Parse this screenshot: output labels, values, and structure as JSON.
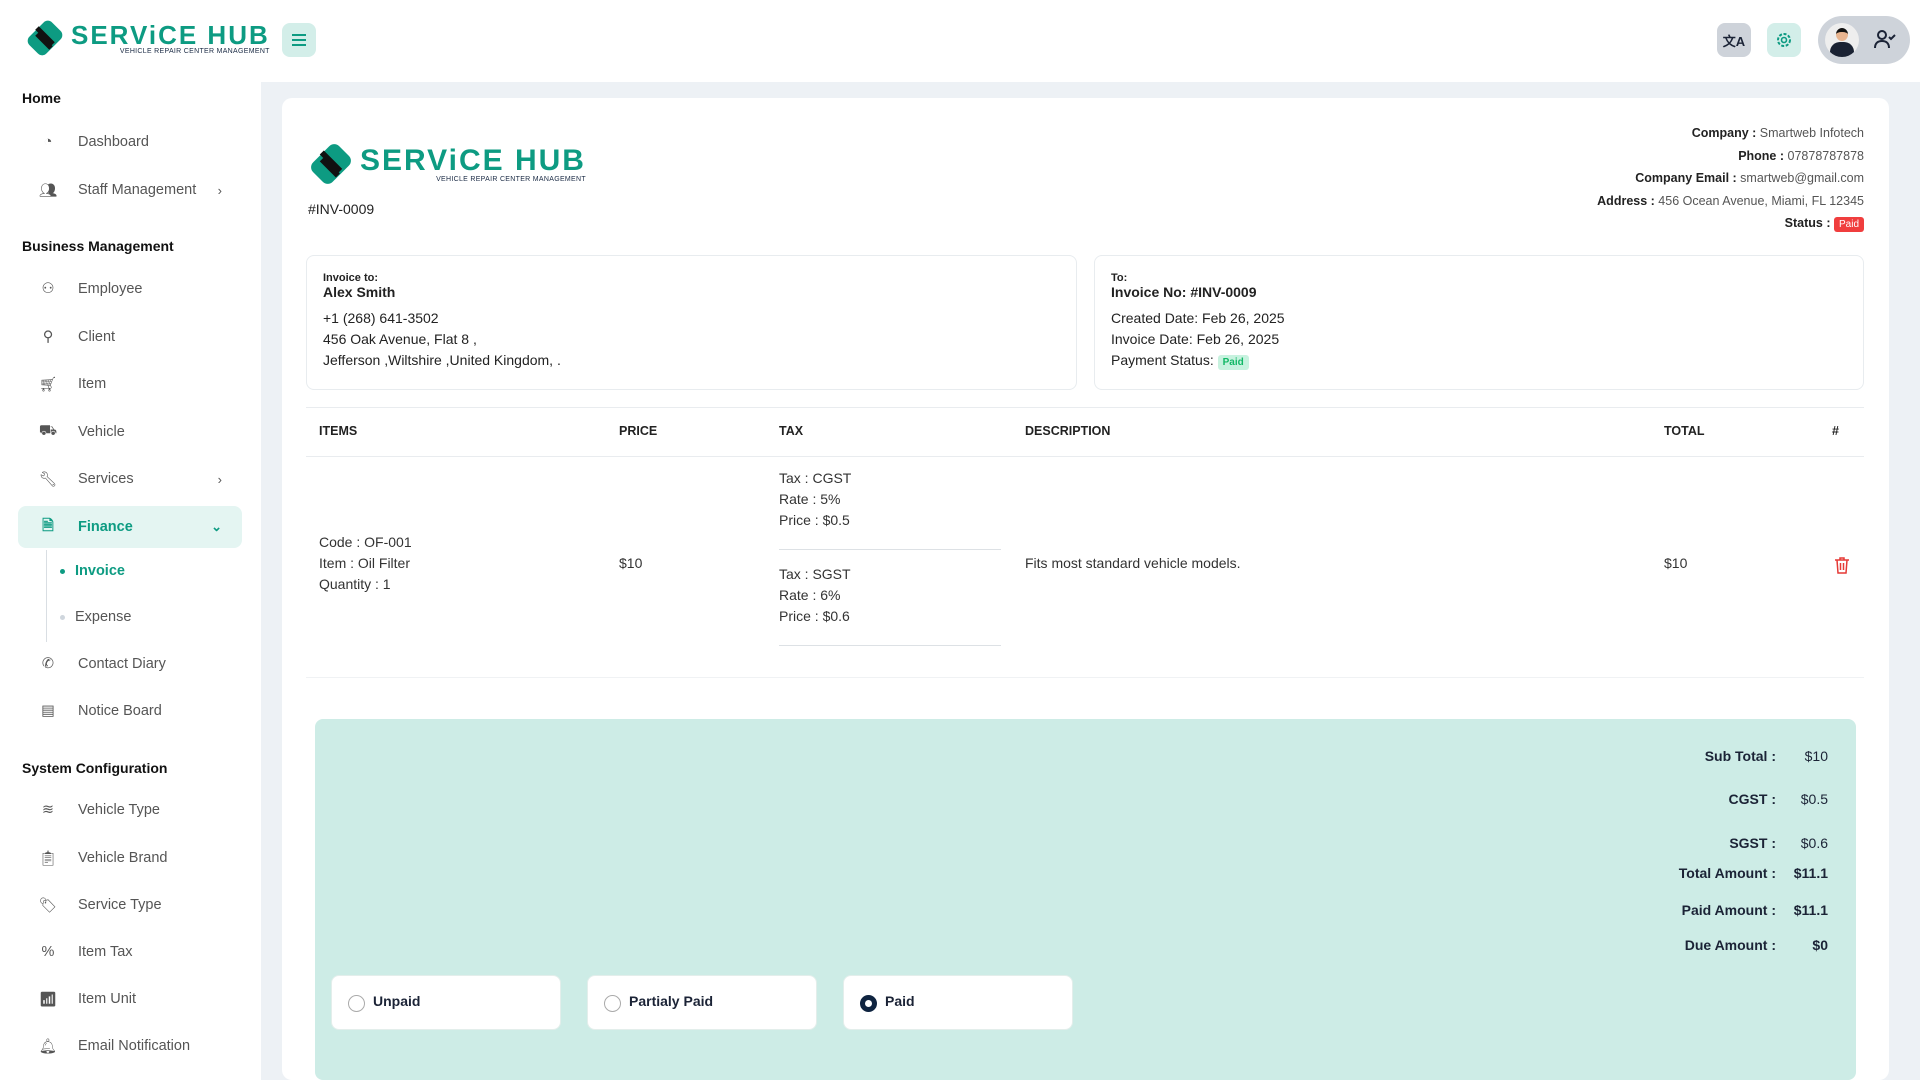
{
  "brand": {
    "name": "SERViCE HUB",
    "tagline": "VEHICLE REPAIR CENTER MANAGEMENT",
    "color": "#0d9b82"
  },
  "header": {
    "menu_icon": "hamburger-icon",
    "translate_icon": "translate-icon",
    "settings_icon": "gear-icon",
    "profile_icon": "user-check-icon"
  },
  "sidebar": {
    "sections": [
      {
        "title": "Home",
        "items": [
          {
            "label": "Dashboard",
            "icon": "dashboard-icon"
          },
          {
            "label": "Staff Management",
            "icon": "users-icon",
            "chevron": true
          }
        ]
      },
      {
        "title": "Business Management",
        "items": [
          {
            "label": "Employee",
            "icon": "user-plus-icon"
          },
          {
            "label": "Client",
            "icon": "user-icon"
          },
          {
            "label": "Item",
            "icon": "cart-icon"
          },
          {
            "label": "Vehicle",
            "icon": "truck-icon"
          },
          {
            "label": "Services",
            "icon": "wrench-icon",
            "chevron": true
          },
          {
            "label": "Finance",
            "icon": "file-icon",
            "active": true,
            "children": [
              {
                "label": "Invoice",
                "active": true
              },
              {
                "label": "Expense"
              }
            ]
          },
          {
            "label": "Contact Diary",
            "icon": "phone-icon"
          },
          {
            "label": "Notice Board",
            "icon": "notebook-icon"
          }
        ]
      },
      {
        "title": "System Configuration",
        "items": [
          {
            "label": "Vehicle Type",
            "icon": "layers-icon"
          },
          {
            "label": "Vehicle Brand",
            "icon": "clipboard-icon"
          },
          {
            "label": "Service Type",
            "icon": "tag-icon"
          },
          {
            "label": "Item Tax",
            "icon": "percent-icon"
          },
          {
            "label": "Item Unit",
            "icon": "signal-icon"
          },
          {
            "label": "Email Notification",
            "icon": "bell-icon"
          }
        ]
      }
    ]
  },
  "invoice": {
    "number": "#INV-0009",
    "company": {
      "company_label": "Company :",
      "company": "Smartweb Infotech",
      "phone_label": "Phone :",
      "phone": "07878787878",
      "email_label": "Company Email :",
      "email": "smartweb@gmail.com",
      "address_label": "Address :",
      "address": "456 Ocean Avenue, Miami, FL 12345",
      "status_label": "Status :",
      "status": "Paid"
    },
    "bill_to": {
      "label": "Invoice to:",
      "name": "Alex Smith",
      "phone": "+1 (268) 641-3502",
      "address1": "456 Oak Avenue, Flat 8 ,",
      "address2": "Jefferson ,Wiltshire ,United Kingdom, ."
    },
    "to": {
      "label": "To:",
      "invoice_no": "Invoice No: #INV-0009",
      "created": "Created Date: Feb 26, 2025",
      "invoice_date": "Invoice Date: Feb 26, 2025",
      "payment_label": "Payment Status:",
      "payment_status": "Paid"
    },
    "table": {
      "headers": [
        "ITEMS",
        "PRICE",
        "TAX",
        "DESCRIPTION",
        "TOTAL",
        "#"
      ],
      "rows": [
        {
          "code": "Code : OF-001",
          "item": "Item : Oil Filter",
          "qty": "Quantity : 1",
          "price": "$10",
          "taxes": [
            {
              "tax": "Tax : CGST",
              "rate": "Rate : 5%",
              "price": "Price : $0.5"
            },
            {
              "tax": "Tax : SGST",
              "rate": "Rate : 6%",
              "price": "Price : $0.6"
            }
          ],
          "description": "Fits most standard vehicle models.",
          "total": "$10",
          "action_icon": "trash-icon"
        }
      ]
    },
    "totals": [
      {
        "label": "Sub Total :",
        "value": "$10"
      },
      {
        "label": "CGST :",
        "value": "$0.5"
      },
      {
        "label": "SGST :",
        "value": "$0.6"
      },
      {
        "label": "Total Amount :",
        "value": "$11.1"
      },
      {
        "label": "Paid Amount :",
        "value": "$11.1"
      },
      {
        "label": "Due Amount :",
        "value": "$0"
      }
    ],
    "payment_options": [
      {
        "label": "Unpaid",
        "selected": false
      },
      {
        "label": "Partialy Paid",
        "selected": false
      },
      {
        "label": "Paid",
        "selected": true
      }
    ]
  }
}
